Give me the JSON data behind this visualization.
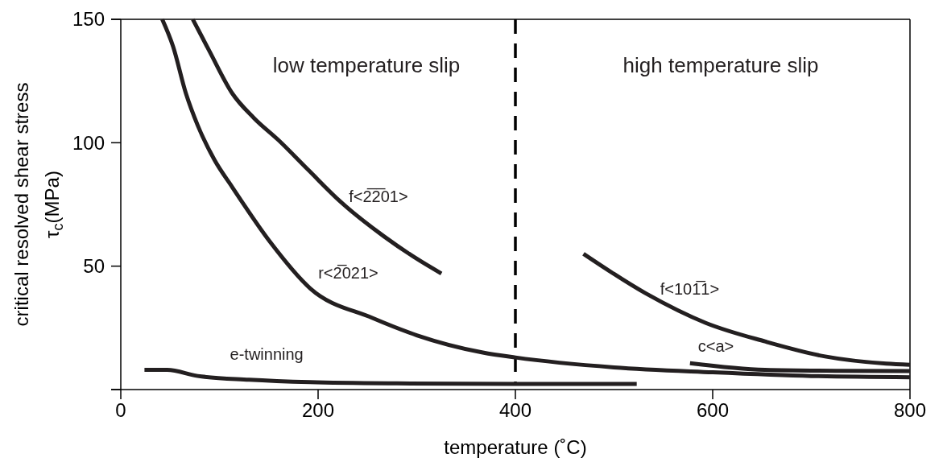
{
  "chart_data": {
    "type": "line",
    "xlabel": "temperature (˚C)",
    "ylabel": "critical resolved shear stress\nτ$_{c}$(MPa)",
    "xlim": [
      0,
      800
    ],
    "ylim": [
      0,
      150
    ],
    "xticks": [
      {
        "value": 0,
        "label": "0"
      },
      200,
      400,
      600,
      800
    ],
    "yticks": [
      {
        "value": 0,
        "label": null
      },
      50,
      100,
      150
    ],
    "grid": false,
    "legend": false,
    "marker": "none",
    "line_style": "solid",
    "series": [
      {
        "name": "f<2̅2̅01>",
        "color": "#231f20",
        "x": [
          73,
          90,
          113,
          135,
          160,
          190,
          223,
          267,
          300,
          325
        ],
        "values": [
          150,
          137,
          120,
          110,
          101,
          89,
          76,
          62,
          53,
          47
        ]
      },
      {
        "name": "r<2̅021>",
        "color": "#231f20",
        "x": [
          42,
          53,
          66,
          78,
          95,
          113,
          151,
          192,
          255,
          300,
          367,
          400,
          500,
          600,
          700,
          800
        ],
        "values": [
          150,
          139,
          120,
          107,
          93,
          82,
          60,
          41,
          29,
          22,
          15,
          13,
          9,
          7,
          5.5,
          5
        ]
      },
      {
        "name": "e-twinning",
        "color": "#231f20",
        "x": [
          24,
          47,
          78,
          130,
          192,
          280,
          400,
          523
        ],
        "values": [
          8,
          8,
          5.5,
          4,
          3,
          2.5,
          2.3,
          2.3
        ]
      },
      {
        "name": "f<101̅1>",
        "color": "#231f20",
        "x": [
          469,
          532,
          593,
          653,
          714,
          776,
          800
        ],
        "values": [
          55,
          39,
          27,
          19.5,
          13.4,
          10.5,
          10
        ]
      },
      {
        "name": "c<a>",
        "color": "#231f20",
        "x": [
          577,
          653,
          730,
          800
        ],
        "values": [
          10.7,
          8,
          7.6,
          7.5
        ]
      }
    ],
    "ref_lines": [
      {
        "axis": "x",
        "value": 400,
        "color": "#000000",
        "line_style": "dashed"
      }
    ],
    "annotations": [
      "low temperature slip",
      "high temperature slip"
    ]
  }
}
